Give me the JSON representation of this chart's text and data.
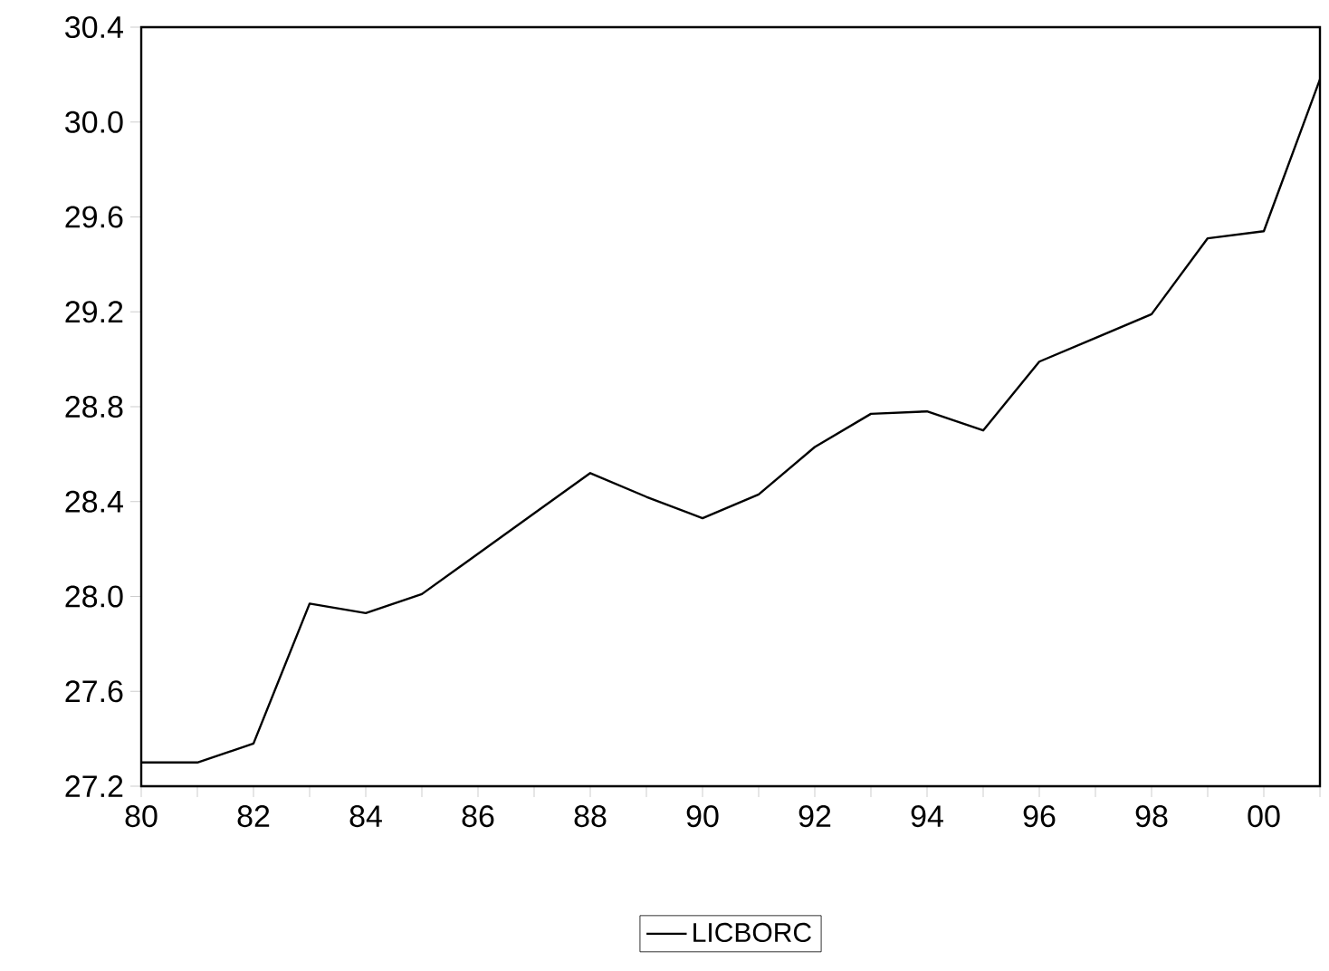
{
  "chart_data": {
    "type": "line",
    "x": [
      1980,
      1981,
      1982,
      1983,
      1984,
      1985,
      1986,
      1987,
      1988,
      1989,
      1990,
      1991,
      1992,
      1993,
      1994,
      1995,
      1996,
      1997,
      1998,
      1999,
      2000,
      2001
    ],
    "series": [
      {
        "name": "LICBORC",
        "color": "#000000",
        "values": [
          27.3,
          27.3,
          27.38,
          27.97,
          27.93,
          28.01,
          28.18,
          28.35,
          28.52,
          28.42,
          28.33,
          28.43,
          28.63,
          28.77,
          28.78,
          28.7,
          28.99,
          29.09,
          29.19,
          29.51,
          29.54,
          30.18
        ]
      }
    ],
    "xlim": [
      1980,
      2001
    ],
    "xticks": [
      {
        "value": 1980,
        "label": "80"
      },
      {
        "value": 1981,
        "label": null
      },
      {
        "value": 1982,
        "label": "82"
      },
      {
        "value": 1983,
        "label": null
      },
      {
        "value": 1984,
        "label": "84"
      },
      {
        "value": 1985,
        "label": null
      },
      {
        "value": 1986,
        "label": "86"
      },
      {
        "value": 1987,
        "label": null
      },
      {
        "value": 1988,
        "label": "88"
      },
      {
        "value": 1989,
        "label": null
      },
      {
        "value": 1990,
        "label": "90"
      },
      {
        "value": 1991,
        "label": null
      },
      {
        "value": 1992,
        "label": "92"
      },
      {
        "value": 1993,
        "label": null
      },
      {
        "value": 1994,
        "label": "94"
      },
      {
        "value": 1995,
        "label": null
      },
      {
        "value": 1996,
        "label": "96"
      },
      {
        "value": 1997,
        "label": null
      },
      {
        "value": 1998,
        "label": "98"
      },
      {
        "value": 1999,
        "label": null
      },
      {
        "value": 2000,
        "label": "00"
      },
      {
        "value": 2001,
        "label": null
      }
    ],
    "ylim": [
      27.2,
      30.4
    ],
    "yticks": [
      {
        "value": 27.2,
        "label": "27.2"
      },
      {
        "value": 27.6,
        "label": "27.6"
      },
      {
        "value": 28.0,
        "label": "28.0"
      },
      {
        "value": 28.4,
        "label": "28.4"
      },
      {
        "value": 28.8,
        "label": "28.8"
      },
      {
        "value": 29.2,
        "label": "29.2"
      },
      {
        "value": 29.6,
        "label": "29.6"
      },
      {
        "value": 30.0,
        "label": "30.0"
      },
      {
        "value": 30.4,
        "label": "30.4"
      }
    ],
    "legend": "bottom",
    "grid": false,
    "marker": "none",
    "line_style": "solid"
  }
}
